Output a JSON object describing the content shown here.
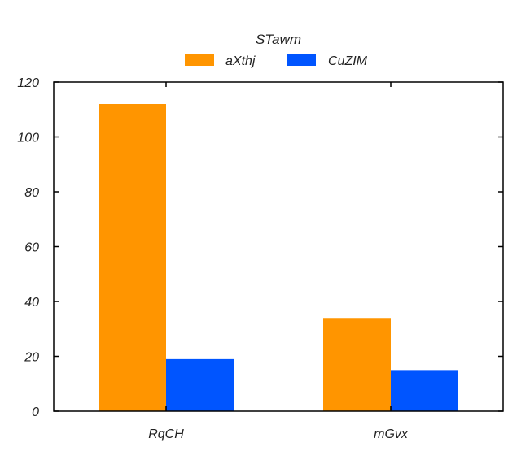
{
  "chart_data": {
    "type": "bar",
    "title": "",
    "xlabel": "",
    "ylabel": "",
    "legend_title": "STawm",
    "legend_position": "top-center",
    "categories": [
      "RqCH",
      "mGvx"
    ],
    "series": [
      {
        "name": "aXthj",
        "color": "#ff9500",
        "values": [
          112,
          34
        ]
      },
      {
        "name": "CuZIM",
        "color": "#0055ff",
        "values": [
          19,
          15
        ]
      }
    ],
    "ylim": [
      0,
      120
    ],
    "yticks": [
      "0",
      "20",
      "40",
      "60",
      "80",
      "100",
      "120"
    ],
    "grid": false
  }
}
